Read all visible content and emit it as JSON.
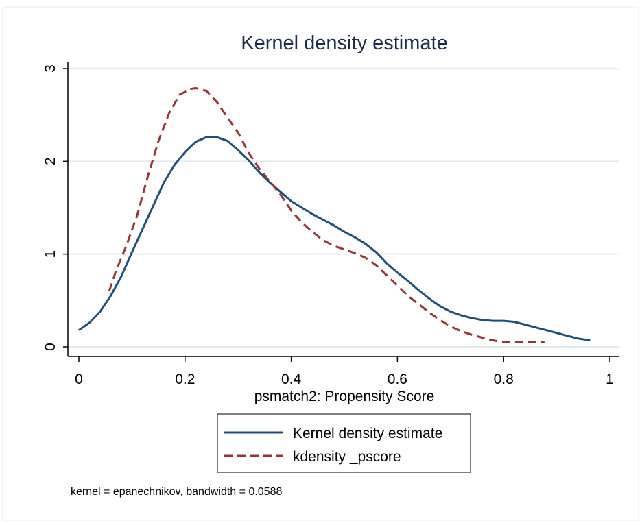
{
  "chart_data": {
    "type": "line",
    "title": "Kernel density estimate",
    "xlabel": "psmatch2: Propensity Score",
    "ylabel": "",
    "xlim": [
      0,
      1
    ],
    "ylim": [
      0,
      3
    ],
    "xticks": [
      0,
      0.2,
      0.4,
      0.6,
      0.8,
      1
    ],
    "xtick_labels": [
      "0",
      "0.2",
      "0.4",
      "0.6",
      "0.8",
      "1"
    ],
    "yticks": [
      0,
      1,
      2,
      3
    ],
    "ytick_labels": [
      "0",
      "1",
      "2",
      "3"
    ],
    "grid": true,
    "legend_position": "bottom",
    "note": "kernel = epanechnikov, bandwidth = 0.0588",
    "series": [
      {
        "name": "Kernel density estimate",
        "color": "#1f4e79",
        "style": "solid",
        "x": [
          0.0,
          0.02,
          0.04,
          0.06,
          0.08,
          0.1,
          0.12,
          0.14,
          0.16,
          0.18,
          0.2,
          0.22,
          0.24,
          0.26,
          0.28,
          0.3,
          0.32,
          0.34,
          0.36,
          0.38,
          0.4,
          0.42,
          0.44,
          0.46,
          0.48,
          0.5,
          0.52,
          0.54,
          0.56,
          0.58,
          0.6,
          0.62,
          0.64,
          0.66,
          0.68,
          0.7,
          0.72,
          0.74,
          0.76,
          0.78,
          0.8,
          0.82,
          0.84,
          0.86,
          0.88,
          0.9,
          0.92,
          0.94,
          0.963
        ],
        "y": [
          0.18,
          0.26,
          0.38,
          0.55,
          0.76,
          1.02,
          1.27,
          1.52,
          1.77,
          1.96,
          2.1,
          2.21,
          2.26,
          2.26,
          2.22,
          2.12,
          2.01,
          1.88,
          1.77,
          1.67,
          1.57,
          1.5,
          1.43,
          1.37,
          1.31,
          1.24,
          1.18,
          1.11,
          1.02,
          0.9,
          0.8,
          0.71,
          0.61,
          0.52,
          0.44,
          0.38,
          0.34,
          0.31,
          0.29,
          0.28,
          0.28,
          0.27,
          0.24,
          0.21,
          0.18,
          0.15,
          0.12,
          0.09,
          0.07
        ]
      },
      {
        "name": "kdensity _pscore",
        "color": "#943634",
        "style": "dashed",
        "x": [
          0.057,
          0.07,
          0.09,
          0.11,
          0.13,
          0.15,
          0.17,
          0.19,
          0.21,
          0.22,
          0.24,
          0.26,
          0.28,
          0.3,
          0.32,
          0.34,
          0.36,
          0.38,
          0.4,
          0.42,
          0.44,
          0.46,
          0.48,
          0.5,
          0.52,
          0.54,
          0.56,
          0.58,
          0.6,
          0.62,
          0.64,
          0.66,
          0.68,
          0.7,
          0.72,
          0.74,
          0.76,
          0.78,
          0.8,
          0.82,
          0.84,
          0.86,
          0.877
        ],
        "y": [
          0.6,
          0.82,
          1.1,
          1.42,
          1.84,
          2.22,
          2.52,
          2.72,
          2.78,
          2.79,
          2.76,
          2.64,
          2.47,
          2.31,
          2.09,
          1.92,
          1.78,
          1.64,
          1.47,
          1.34,
          1.24,
          1.15,
          1.09,
          1.05,
          1.01,
          0.96,
          0.88,
          0.77,
          0.66,
          0.55,
          0.46,
          0.37,
          0.29,
          0.22,
          0.17,
          0.13,
          0.1,
          0.07,
          0.05,
          0.05,
          0.05,
          0.05,
          0.05
        ]
      }
    ]
  }
}
